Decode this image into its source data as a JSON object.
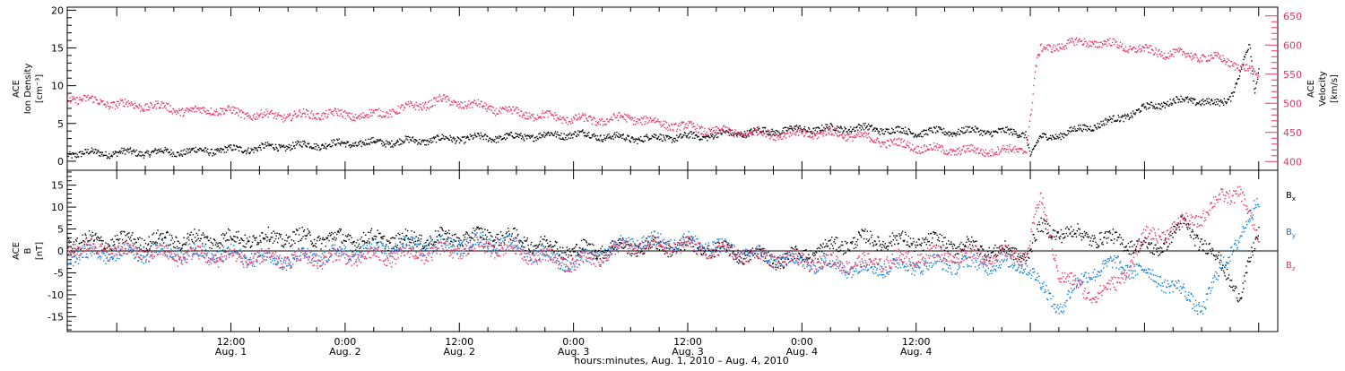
{
  "colors": {
    "density": "#000000",
    "velocity": "#ee3366",
    "bx": "#000000",
    "by": "#0a7fe0",
    "bz": "#ee3366",
    "frame": "#000000"
  },
  "chart_data": [
    {
      "type": "scatter",
      "name": "ace-plasma-panel",
      "ylabel_left": [
        "ACE",
        "Ion Density",
        "[cm⁻³]"
      ],
      "ylabel_right": [
        "ACE",
        "Velocity",
        "[km/s]"
      ],
      "ylim_left": [
        -1.2,
        20.4
      ],
      "yticks_left": [
        0,
        5,
        10,
        15,
        20
      ],
      "ylim_right": [
        385,
        665
      ],
      "yticks_right": [
        400,
        450,
        500,
        550,
        600,
        650
      ],
      "xlim_hours": [
        -5.2,
        122
      ],
      "series": [
        {
          "key": "density",
          "axis": "left",
          "x": [
            -5.2,
            0,
            6,
            12,
            18,
            24,
            30,
            36,
            42,
            48,
            54,
            60,
            66,
            72,
            78,
            84,
            90,
            95.5,
            96,
            96.5,
            97,
            99,
            102,
            105,
            108,
            111,
            114,
            116,
            117,
            118,
            119,
            119.5,
            120
          ],
          "y": [
            1.0,
            1.1,
            1.2,
            1.5,
            2.0,
            2.3,
            2.6,
            3.0,
            3.2,
            3.6,
            3.0,
            3.2,
            3.8,
            4.2,
            4.4,
            3.8,
            4.0,
            3.7,
            0.6,
            2.0,
            3.0,
            3.5,
            4.5,
            5.5,
            7.0,
            8.0,
            8.0,
            7.5,
            8.5,
            12.0,
            15.5,
            9.0,
            12.0
          ]
        },
        {
          "key": "velocity",
          "axis": "right",
          "x": [
            -5.2,
            0,
            4,
            8,
            10,
            14,
            18,
            22,
            26,
            30,
            34,
            38,
            42,
            46,
            50,
            54,
            58,
            64,
            70,
            76,
            82,
            86,
            90,
            93,
            95.5,
            96,
            96.5,
            97,
            99,
            102,
            105,
            108,
            111,
            114,
            116,
            118,
            120
          ],
          "y": [
            510,
            498,
            495,
            485,
            490,
            480,
            478,
            482,
            478,
            490,
            505,
            495,
            483,
            476,
            470,
            475,
            463,
            450,
            447,
            448,
            430,
            420,
            418,
            418,
            422,
            480,
            560,
            590,
            600,
            605,
            600,
            590,
            585,
            580,
            575,
            565,
            545
          ]
        }
      ]
    },
    {
      "type": "scatter",
      "name": "ace-magnetic-field-panel",
      "ylabel_left": [
        "ACE",
        "B",
        "[nT]"
      ],
      "ylim": [
        -18.4,
        18.4
      ],
      "yticks": [
        -15,
        -10,
        -5,
        0,
        5,
        10,
        15
      ],
      "zero_line": true,
      "xlim_hours": [
        -5.2,
        122
      ],
      "series": [
        {
          "key": "bx",
          "label": "B",
          "subscript": "x",
          "x": [
            -5.2,
            6,
            18,
            30,
            40,
            48,
            54,
            60,
            70,
            78,
            86,
            95.5,
            97,
            100,
            103,
            106,
            109,
            112,
            115,
            118,
            119,
            120
          ],
          "y": [
            2.0,
            2.5,
            3.0,
            2.5,
            3.5,
            0.0,
            1.0,
            1.0,
            -2.0,
            2.5,
            2.0,
            -1.0,
            5.0,
            4.0,
            3.0,
            2.0,
            0.0,
            6.0,
            0.0,
            -10.0,
            -3.0,
            4.0
          ]
        },
        {
          "key": "by",
          "label": "B",
          "subscript": "y",
          "x": [
            -5.2,
            6,
            18,
            30,
            40,
            48,
            54,
            60,
            70,
            78,
            86,
            95.5,
            97,
            99,
            102,
            105,
            108,
            111,
            114,
            117,
            120
          ],
          "y": [
            -1.0,
            0.0,
            -2.0,
            1.0,
            2.0,
            -3.0,
            2.0,
            2.0,
            -2.0,
            -4.0,
            -3.0,
            -3.0,
            -8.0,
            -13.0,
            -5.0,
            -3.0,
            -5.0,
            -8.0,
            -13.0,
            0.0,
            11.0
          ]
        },
        {
          "key": "bz",
          "label": "B",
          "subscript": "z",
          "x": [
            -5.2,
            6,
            18,
            30,
            40,
            48,
            54,
            60,
            70,
            78,
            86,
            95.5,
            97,
            99,
            102,
            105,
            108,
            111,
            114,
            116,
            118,
            120
          ],
          "y": [
            1.0,
            -1.0,
            -2.0,
            -1.0,
            1.0,
            -3.0,
            1.0,
            1.0,
            -2.0,
            -3.0,
            -1.0,
            -1.0,
            12.0,
            -5.0,
            -10.0,
            -8.0,
            3.0,
            5.0,
            8.0,
            12.0,
            14.0,
            1.0
          ]
        }
      ]
    }
  ],
  "x_axis": {
    "tick_labels": [
      {
        "hour": 12,
        "time": "12:00",
        "date": "Aug. 1"
      },
      {
        "hour": 24,
        "time": "0:00",
        "date": "Aug. 2"
      },
      {
        "hour": 36,
        "time": "12:00",
        "date": "Aug. 2"
      },
      {
        "hour": 48,
        "time": "0:00",
        "date": "Aug. 3"
      },
      {
        "hour": 60,
        "time": "12:00",
        "date": "Aug. 3"
      },
      {
        "hour": 72,
        "time": "0:00",
        "date": "Aug. 4"
      },
      {
        "hour": 84,
        "time": "12:00",
        "date": "Aug. 4"
      }
    ],
    "title": "hours:minutes, Aug.  1, 2010 – Aug.  4, 2010"
  }
}
